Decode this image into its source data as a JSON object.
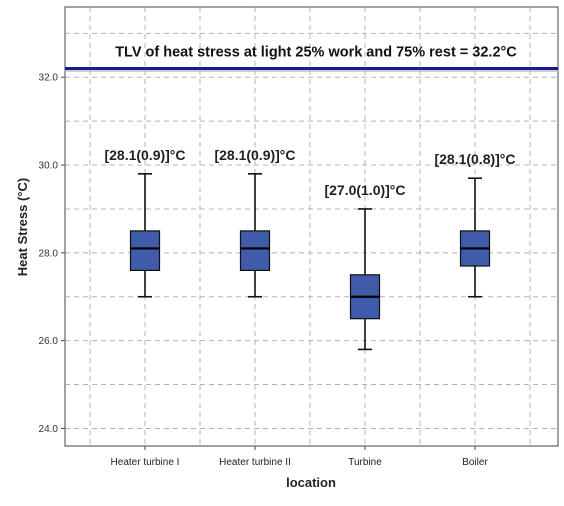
{
  "chart_data": {
    "type": "box",
    "xlabel": "location",
    "ylabel": "Heat Stress (°C)",
    "ylim": [
      23.6,
      33.6
    ],
    "yticks": [
      24.0,
      26.0,
      28.0,
      30.0,
      32.0
    ],
    "ytick_labels": [
      "24.0",
      "26.0",
      "28.0",
      "30.0",
      "32.0"
    ],
    "grid": true,
    "box_color": "#3F5BAA",
    "categories": [
      "Heater turbine I",
      "Heater turbine II",
      "Turbine",
      "Boiler"
    ],
    "boxes": [
      {
        "min": 27.0,
        "q1": 27.6,
        "median": 28.1,
        "q3": 28.5,
        "max": 29.8,
        "label": "[28.1(0.9)]°C"
      },
      {
        "min": 27.0,
        "q1": 27.6,
        "median": 28.1,
        "q3": 28.5,
        "max": 29.8,
        "label": "[28.1(0.9)]°C"
      },
      {
        "min": 25.8,
        "q1": 26.5,
        "median": 27.0,
        "q3": 27.5,
        "max": 29.0,
        "label": "[27.0(1.0)]°C"
      },
      {
        "min": 27.0,
        "q1": 27.7,
        "median": 28.1,
        "q3": 28.5,
        "max": 29.7,
        "label": "[28.1(0.8)]°C"
      }
    ],
    "reference_line": {
      "value": 32.2,
      "label": "TLV of heat stress at light 25% work and 75% rest = 32.2°C",
      "color": "#1a1a8c"
    }
  }
}
